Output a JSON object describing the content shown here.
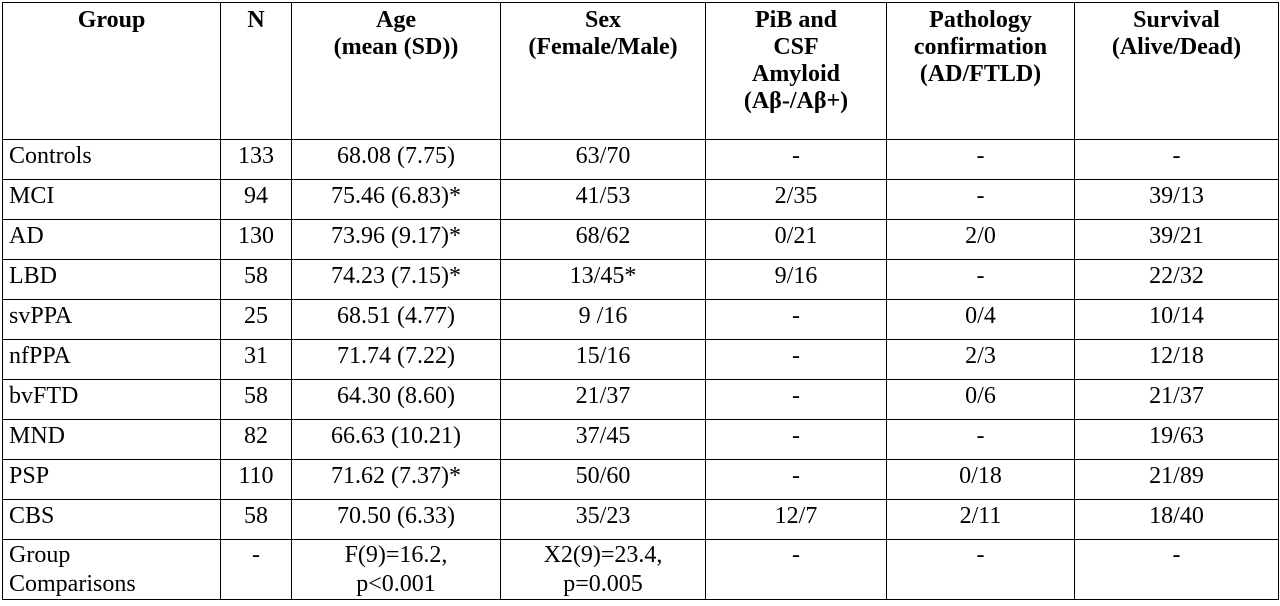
{
  "table": {
    "headers": [
      {
        "key": "group",
        "lines": [
          "Group"
        ]
      },
      {
        "key": "n",
        "lines": [
          "N"
        ]
      },
      {
        "key": "age",
        "lines": [
          "Age",
          "(mean (SD))"
        ]
      },
      {
        "key": "sex",
        "lines": [
          "Sex",
          "(Female/Male)"
        ]
      },
      {
        "key": "pib",
        "lines": [
          "PiB and",
          "CSF",
          "Amyloid",
          "(Aβ-/Aβ+)"
        ]
      },
      {
        "key": "pathology",
        "lines": [
          "Pathology",
          "confirmation",
          "(AD/FTLD)"
        ]
      },
      {
        "key": "survival",
        "lines": [
          "Survival",
          "(Alive/Dead)"
        ]
      }
    ],
    "rows": [
      {
        "group": "Controls",
        "n": "133",
        "age": "68.08 (7.75)",
        "sex": "63/70",
        "pib": "-",
        "pathology": "-",
        "survival": "-"
      },
      {
        "group": "MCI",
        "n": "94",
        "age": "75.46 (6.83)*",
        "sex": "41/53",
        "pib": "2/35",
        "pathology": "-",
        "survival": "39/13"
      },
      {
        "group": "AD",
        "n": "130",
        "age": "73.96 (9.17)*",
        "sex": "68/62",
        "pib": "0/21",
        "pathology": "2/0",
        "survival": "39/21"
      },
      {
        "group": "LBD",
        "n": "58",
        "age": "74.23 (7.15)*",
        "sex": "13/45*",
        "pib": "9/16",
        "pathology": "-",
        "survival": "22/32"
      },
      {
        "group": "svPPA",
        "n": "25",
        "age": "68.51 (4.77)",
        "sex": "9 /16",
        "pib": "-",
        "pathology": "0/4",
        "survival": "10/14"
      },
      {
        "group": "nfPPA",
        "n": "31",
        "age": "71.74 (7.22)",
        "sex": "15/16",
        "pib": "-",
        "pathology": "2/3",
        "survival": "12/18"
      },
      {
        "group": "bvFTD",
        "n": "58",
        "age": "64.30 (8.60)",
        "sex": "21/37",
        "pib": "-",
        "pathology": "0/6",
        "survival": "21/37"
      },
      {
        "group": "MND",
        "n": "82",
        "age": "66.63 (10.21)",
        "sex": "37/45",
        "pib": "-",
        "pathology": "-",
        "survival": "19/63"
      },
      {
        "group": "PSP",
        "n": "110",
        "age": "71.62 (7.37)*",
        "sex": "50/60",
        "pib": "-",
        "pathology": "0/18",
        "survival": "21/89"
      },
      {
        "group": "CBS",
        "n": "58",
        "age": "70.50 (6.33)",
        "sex": "35/23",
        "pib": "12/7",
        "pathology": "2/11",
        "survival": "18/40"
      }
    ],
    "comparison_row": {
      "group": [
        "Group",
        "Comparisons"
      ],
      "n": "-",
      "age": [
        "F(9)=16.2,",
        "p<0.001"
      ],
      "sex": [
        "X2(9)=23.4,",
        "p=0.005"
      ],
      "pib": "-",
      "pathology": "-",
      "survival": "-"
    }
  }
}
